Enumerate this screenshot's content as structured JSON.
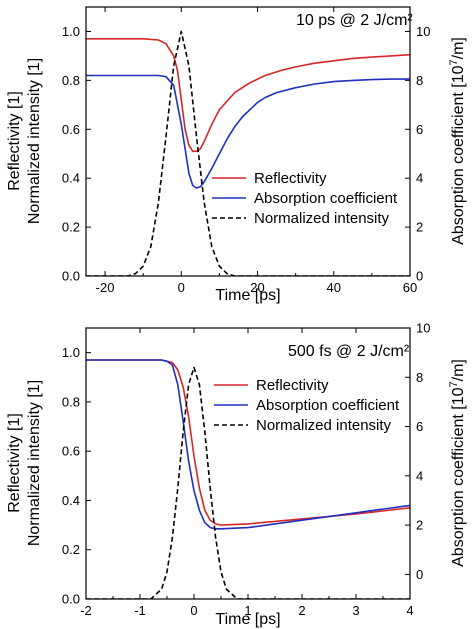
{
  "figure": {
    "background": "#ffffff"
  },
  "chart_data": [
    {
      "type": "line",
      "annotation": "10 ps  @ 2 J/cm²",
      "xlabel": "Time [ps]",
      "ylabel_left": [
        "Reflectivity [1]",
        "Normalized intensity [1]"
      ],
      "ylabel_right": "Absorption coefficient [10",
      "ylabel_right_sup": "7",
      "ylabel_right_end": "/m]",
      "xlim": [
        -25,
        60
      ],
      "ylim_left": [
        0,
        1.1
      ],
      "ylim_right": [
        0,
        11
      ],
      "xticks": [
        -20,
        0,
        20,
        40,
        60
      ],
      "xtick_labels": [
        "-20",
        "0",
        "20",
        "40",
        "60"
      ],
      "yticks_left": [
        0.0,
        0.2,
        0.4,
        0.6,
        0.8,
        1.0
      ],
      "ytick_labels_left": [
        "0.0",
        "0.2",
        "0.4",
        "0.6",
        "0.8",
        "1.0"
      ],
      "yticks_right": [
        0,
        2,
        4,
        6,
        8,
        10
      ],
      "ytick_labels_right": [
        "0",
        "2",
        "4",
        "6",
        "8",
        "10"
      ],
      "legend_position": "right",
      "series": [
        {
          "name": "Reflectivity",
          "axis": "left",
          "color": "#d62728",
          "style": "solid",
          "x": [
            -25,
            -10,
            -6,
            -4,
            -2,
            -1,
            0,
            1,
            2,
            3,
            4,
            5,
            6,
            8,
            10,
            14,
            18,
            22,
            26,
            30,
            35,
            40,
            45,
            50,
            55,
            60
          ],
          "y": [
            0.97,
            0.97,
            0.965,
            0.95,
            0.9,
            0.84,
            0.72,
            0.6,
            0.535,
            0.51,
            0.51,
            0.52,
            0.55,
            0.62,
            0.68,
            0.75,
            0.79,
            0.82,
            0.84,
            0.855,
            0.87,
            0.88,
            0.89,
            0.895,
            0.9,
            0.905
          ]
        },
        {
          "name": "Absorption coefficient",
          "axis": "right",
          "color": "#1f2fbf",
          "style": "solid",
          "x": [
            -25,
            -6,
            -4,
            -2,
            0,
            1,
            2,
            3,
            4,
            5,
            6,
            8,
            10,
            12,
            14,
            16,
            18,
            20,
            22,
            25,
            30,
            35,
            40,
            45,
            50,
            55,
            60
          ],
          "y": [
            8.2,
            8.2,
            8.15,
            7.8,
            6.2,
            5.2,
            4.2,
            3.7,
            3.6,
            3.65,
            3.85,
            4.4,
            5.0,
            5.6,
            6.1,
            6.5,
            6.8,
            7.1,
            7.3,
            7.5,
            7.7,
            7.85,
            7.95,
            8.0,
            8.03,
            8.05,
            8.05
          ]
        },
        {
          "name": "Normalized intensity",
          "axis": "left",
          "color": "#000000",
          "style": "dashed",
          "x": [
            -25,
            -14,
            -12,
            -10,
            -8,
            -6,
            -4,
            -2,
            0,
            2,
            4,
            6,
            8,
            10,
            12,
            14,
            16,
            25,
            60
          ],
          "y": [
            0.0,
            0.0,
            0.01,
            0.04,
            0.12,
            0.3,
            0.57,
            0.86,
            1.0,
            0.86,
            0.57,
            0.3,
            0.12,
            0.04,
            0.01,
            0.0,
            0.0,
            0.0,
            0.0
          ]
        }
      ]
    },
    {
      "type": "line",
      "annotation": "500 fs  @ 2 J/cm²",
      "xlabel": "Time [ps]",
      "ylabel_left": [
        "Reflectivity [1]",
        "Normalized intensity [1]"
      ],
      "ylabel_right": "Absorption coefficient [10",
      "ylabel_right_sup": "7",
      "ylabel_right_end": "/m]",
      "xlim": [
        -2,
        4
      ],
      "ylim_left": [
        0,
        1.1
      ],
      "ylim_right": [
        -1,
        10
      ],
      "xticks": [
        -2,
        -1,
        0,
        1,
        2,
        3,
        4
      ],
      "xtick_labels": [
        "-2",
        "-1",
        "0",
        "1",
        "2",
        "3",
        "4"
      ],
      "yticks_left": [
        0.0,
        0.2,
        0.4,
        0.6,
        0.8,
        1.0
      ],
      "ytick_labels_left": [
        "0.0",
        "0.2",
        "0.4",
        "0.6",
        "0.8",
        "1.0"
      ],
      "yticks_right": [
        0,
        2,
        4,
        6,
        8,
        10
      ],
      "ytick_labels_right": [
        "0",
        "2",
        "4",
        "6",
        "8",
        "10"
      ],
      "legend_position": "right",
      "series": [
        {
          "name": "Reflectivity",
          "axis": "left",
          "color": "#d62728",
          "style": "solid",
          "x": [
            -2,
            -0.6,
            -0.4,
            -0.3,
            -0.2,
            -0.1,
            0.0,
            0.1,
            0.2,
            0.3,
            0.4,
            0.5,
            1.0,
            2.0,
            3.0,
            4.0
          ],
          "y": [
            0.97,
            0.97,
            0.96,
            0.93,
            0.86,
            0.74,
            0.58,
            0.45,
            0.36,
            0.32,
            0.305,
            0.3,
            0.305,
            0.325,
            0.345,
            0.37
          ]
        },
        {
          "name": "Absorption coefficient",
          "axis": "right",
          "color": "#1f2fbf",
          "style": "solid",
          "x": [
            -2,
            -0.6,
            -0.5,
            -0.4,
            -0.3,
            -0.2,
            -0.1,
            0.0,
            0.1,
            0.2,
            0.3,
            0.4,
            0.5,
            1.0,
            2.0,
            3.0,
            4.0
          ],
          "y": [
            8.7,
            8.7,
            8.65,
            8.5,
            7.7,
            6.2,
            4.6,
            3.4,
            2.6,
            2.1,
            1.9,
            1.85,
            1.85,
            1.9,
            2.2,
            2.5,
            2.8
          ]
        },
        {
          "name": "Normalized intensity",
          "axis": "left",
          "color": "#000000",
          "style": "dashed",
          "x": [
            -2,
            -0.8,
            -0.6,
            -0.5,
            -0.4,
            -0.3,
            -0.2,
            -0.1,
            0.0,
            0.1,
            0.2,
            0.3,
            0.4,
            0.5,
            0.6,
            0.8,
            4.0
          ],
          "y": [
            0.0,
            0.0,
            0.04,
            0.11,
            0.25,
            0.45,
            0.68,
            0.87,
            0.94,
            0.87,
            0.68,
            0.45,
            0.25,
            0.11,
            0.04,
            0.0,
            0.0
          ]
        }
      ]
    }
  ]
}
